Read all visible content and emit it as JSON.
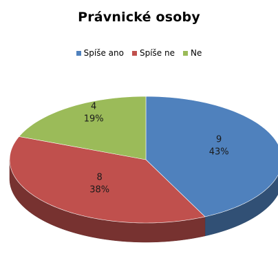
{
  "chart_data": {
    "type": "pie",
    "title": "Právnické osoby",
    "legend_position": "top",
    "style": "3d",
    "categories": [
      "Spíše ano",
      "Spíše ne",
      "Ne"
    ],
    "values": [
      9,
      8,
      4
    ],
    "percentages": [
      "43%",
      "38%",
      "19%"
    ],
    "colors": [
      "#4F81BD",
      "#C0504D",
      "#9BBB59"
    ],
    "data_labels": [
      {
        "value": "9",
        "percent": "43%"
      },
      {
        "value": "8",
        "percent": "38%"
      },
      {
        "value": "4",
        "percent": "19%"
      }
    ]
  }
}
